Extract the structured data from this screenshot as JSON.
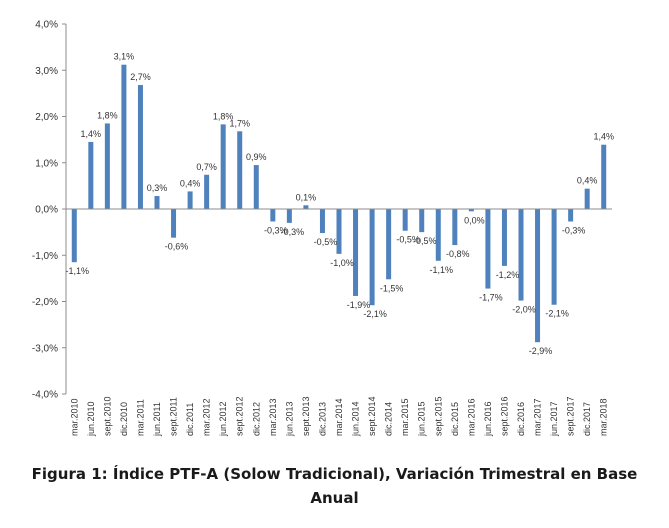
{
  "chart_data": {
    "type": "bar",
    "title": "",
    "xlabel": "",
    "ylabel": "",
    "ylim": [
      -4.0,
      4.0
    ],
    "yticks": [
      -4.0,
      -3.0,
      -2.0,
      -1.0,
      0.0,
      1.0,
      2.0,
      3.0,
      4.0
    ],
    "ytick_labels": [
      "-4,0%",
      "-3,0%",
      "-2,0%",
      "-1,0%",
      "0,0%",
      "1,0%",
      "2,0%",
      "3,0%",
      "4,0%"
    ],
    "bar_color": "#4f81bd",
    "categories": [
      "mar.2010",
      "jun.2010",
      "sept.2010",
      "dic.2010",
      "mar.2011",
      "jun.2011",
      "sept.2011",
      "dic.2011",
      "mar.2012",
      "jun.2012",
      "sept.2012",
      "dic.2012",
      "mar.2013",
      "jun.2013",
      "sept.2013",
      "dic.2013",
      "mar.2014",
      "jun.2014",
      "sept.2014",
      "dic.2014",
      "mar.2015",
      "jun.2015",
      "sept.2015",
      "dic.2015",
      "mar.2016",
      "jun.2016",
      "sept.2016",
      "dic.2016",
      "mar.2017",
      "jun.2017",
      "sept.2017",
      "dic.2017",
      "mar.2018"
    ],
    "values": [
      -1.15,
      1.45,
      1.85,
      3.12,
      2.68,
      0.28,
      -0.62,
      0.38,
      0.74,
      1.83,
      1.68,
      0.95,
      -0.27,
      -0.3,
      0.08,
      -0.52,
      -0.97,
      -1.88,
      -2.08,
      -1.52,
      -0.47,
      -0.5,
      -1.12,
      -0.78,
      -0.05,
      -1.72,
      -1.23,
      -1.98,
      -2.88,
      -2.07,
      -0.27,
      0.44,
      1.39
    ],
    "data_labels": [
      "-1,1%",
      "1,4%",
      "1,8%",
      "3,1%",
      "2,7%",
      "0,3%",
      "-0,6%",
      "0,4%",
      "0,7%",
      "1,8%",
      "1,7%",
      "0,9%",
      "-0,3%",
      "-0,3%",
      "0,1%",
      "-0,5%",
      "-1,0%",
      "-1,9%",
      "-2,1%",
      "-1,5%",
      "-0,5%",
      "-0,5%",
      "-1,1%",
      "-0,8%",
      "0,0%",
      "-1,7%",
      "-1,2%",
      "-2,0%",
      "-2,9%",
      "-2,1%",
      "-0,3%",
      "0,4%",
      "1,4%"
    ]
  },
  "caption": {
    "line1": "Figura 1: Índice PTF-A (Solow Tradicional), Variación Trimestral en Base",
    "line2": "Anual"
  }
}
